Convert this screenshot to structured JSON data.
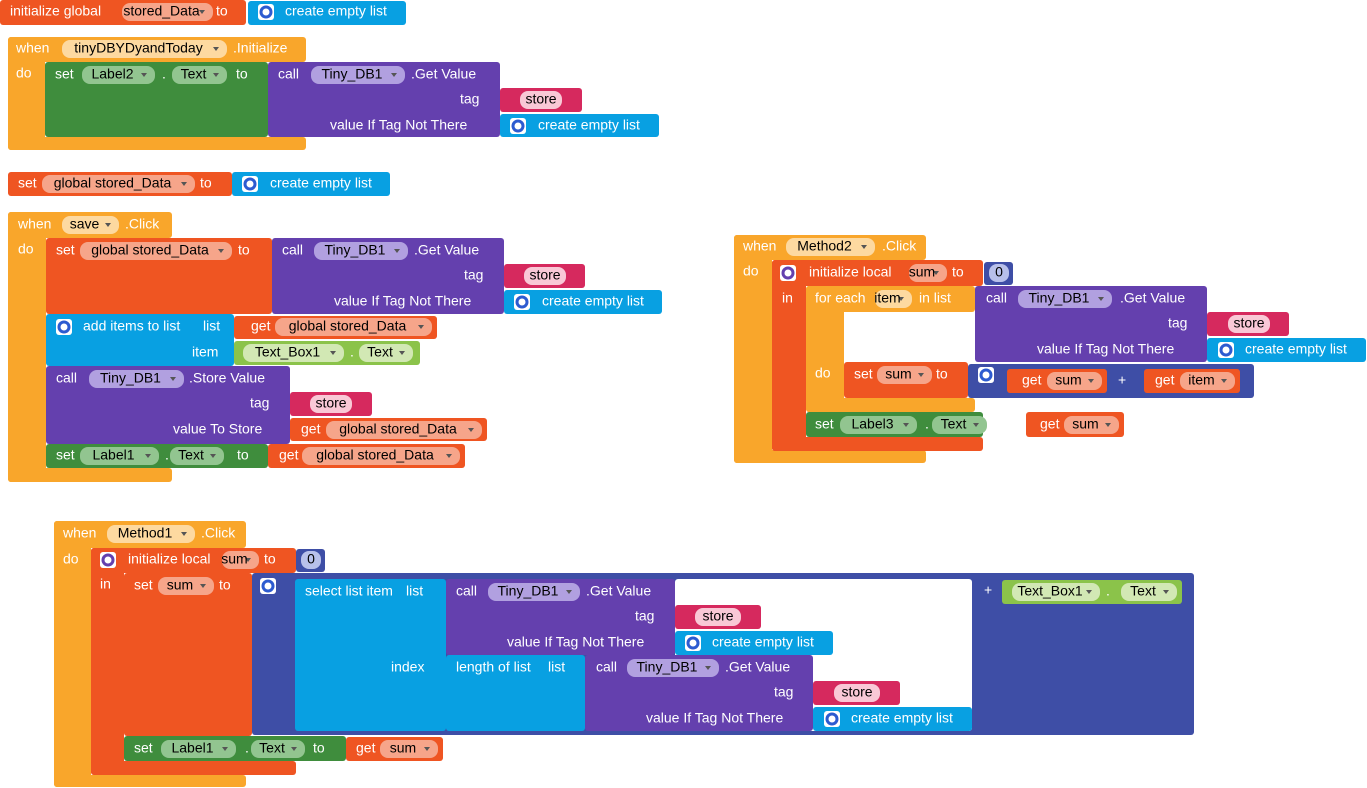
{
  "blocks": [
    [
      "initialize global",
      "stored_Data",
      "to",
      "create empty list"
    ],
    [
      "when",
      "tinyDBYDyandToday",
      ".Initialize",
      "do",
      "set",
      "Label2",
      ".",
      "Text",
      "to",
      "call",
      "Tiny_DB1",
      ".Get Value",
      "tag",
      "store",
      "value If Tag Not There",
      "create empty list"
    ],
    [
      "set",
      "global stored_Data",
      "to",
      "create empty list"
    ],
    [
      "when",
      "save",
      ".Click",
      "do",
      "set",
      "global stored_Data",
      "to",
      "call",
      "Tiny_DB1",
      ".Get Value",
      "tag",
      "store",
      "value If Tag Not There",
      "create empty list",
      "add items to list",
      "list",
      "item",
      "get",
      "global stored_Data",
      "Text_Box1",
      ".",
      "Text",
      "call",
      "Tiny_DB1",
      ".Store Value",
      "tag",
      "store",
      "value To Store",
      "get",
      "global stored_Data",
      "set",
      "Label1",
      ".",
      "Text",
      "to",
      "get",
      "global stored_Data"
    ],
    [
      "when",
      "Method2",
      ".Click",
      "do",
      "initialize local",
      "sum",
      "to",
      "0",
      "in",
      "for each",
      "item",
      "in list",
      "call",
      "Tiny_DB1",
      ".Get Value",
      "tag",
      "store",
      "value If Tag Not There",
      "create empty list",
      "do",
      "set",
      "sum",
      "to",
      "get",
      "sum",
      "+",
      "get",
      "item",
      "set",
      "Label3",
      ".",
      "Text",
      "to",
      "get",
      "sum"
    ],
    [
      "when",
      "Method1",
      ".Click",
      "do",
      "initialize local",
      "sum",
      "to",
      "0",
      "in",
      "set",
      "sum",
      "to",
      "select list item",
      "list",
      "call",
      "Tiny_DB1",
      ".Get Value",
      "tag",
      "store",
      "value If Tag Not There",
      "create empty list",
      "index",
      "length of list",
      "list",
      "call",
      "Tiny_DB1",
      ".Get Value",
      "tag",
      "store",
      "value If Tag Not There",
      "create empty list",
      "+",
      "Text_Box1",
      ".",
      "Text",
      "set",
      "Label1",
      ".",
      "Text",
      "to",
      "get",
      "sum"
    ]
  ]
}
